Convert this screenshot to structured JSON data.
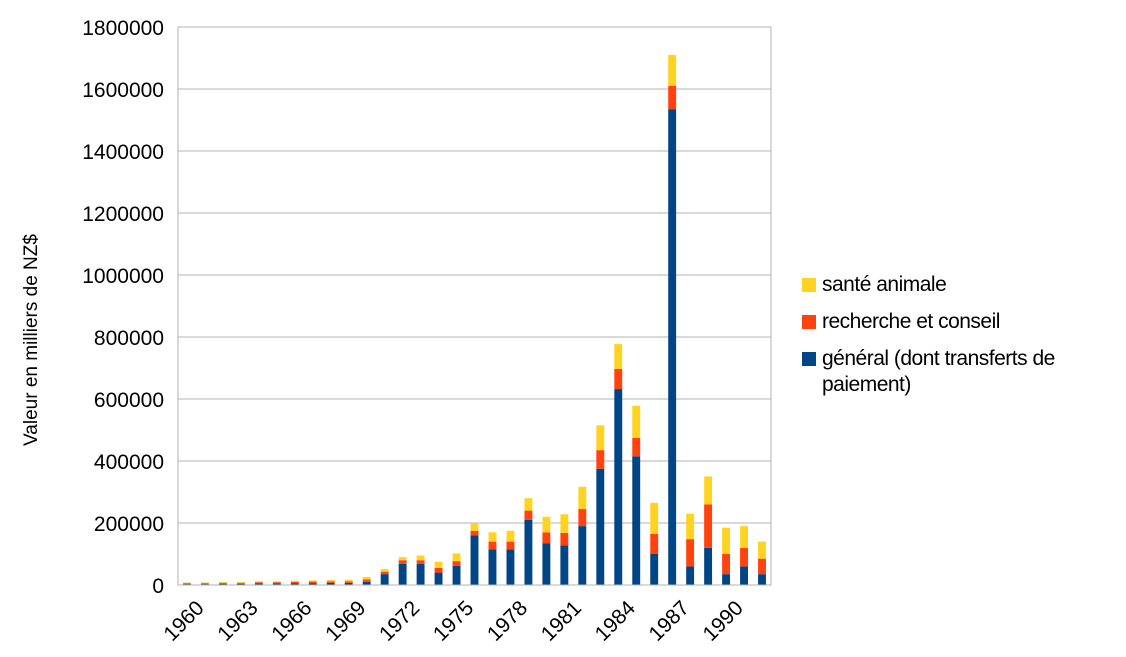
{
  "chart_data": {
    "type": "bar",
    "stacked": true,
    "ylabel": "Valeur en milliers de NZ$",
    "ylim": [
      0,
      1800000
    ],
    "yticks": [
      0,
      200000,
      400000,
      600000,
      800000,
      1000000,
      1200000,
      1400000,
      1600000,
      1800000
    ],
    "xtick_labels": [
      "1960",
      "1963",
      "1966",
      "1969",
      "1972",
      "1975",
      "1978",
      "1981",
      "1984",
      "1987",
      "1990"
    ],
    "categories": [
      "1960",
      "1961",
      "1962",
      "1963",
      "1964",
      "1965",
      "1966",
      "1967",
      "1968",
      "1969",
      "1970",
      "1971",
      "1972",
      "1973",
      "1974",
      "1975",
      "1976",
      "1977",
      "1978",
      "1979",
      "1980",
      "1981",
      "1982",
      "1983",
      "1984",
      "1985",
      "1986",
      "1987",
      "1988",
      "1989",
      "1990",
      "1991",
      "1992"
    ],
    "grid": true,
    "legend_position": "right",
    "series": [
      {
        "name": "général (dont transferts de paiement)",
        "color": "#004586",
        "values": [
          3000,
          3000,
          4000,
          4000,
          5000,
          5000,
          6000,
          6000,
          7000,
          7000,
          10000,
          35000,
          68000,
          68000,
          40000,
          62000,
          160000,
          115000,
          115000,
          210000,
          135000,
          128000,
          190000,
          375000,
          632000,
          415000,
          100000,
          1535000,
          60000,
          120000,
          35000,
          60000,
          35000
        ]
      },
      {
        "name": "recherche et conseil",
        "color": "#ff420e",
        "values": [
          3000,
          3000,
          3000,
          3000,
          4000,
          4000,
          4000,
          5000,
          5000,
          5000,
          8000,
          8000,
          12000,
          12000,
          15000,
          15000,
          15000,
          25000,
          25000,
          30000,
          35000,
          40000,
          55000,
          60000,
          65000,
          60000,
          65000,
          75000,
          88000,
          140000,
          65000,
          60000,
          50000
        ]
      },
      {
        "name": "santé animale",
        "color": "#ffd320",
        "values": [
          2000,
          2000,
          3000,
          3000,
          3000,
          3000,
          4000,
          4000,
          4000,
          5000,
          8000,
          8000,
          10000,
          15000,
          20000,
          25000,
          25000,
          30000,
          35000,
          40000,
          50000,
          60000,
          72000,
          80000,
          80000,
          103000,
          100000,
          100000,
          82000,
          90000,
          85000,
          70000,
          55000
        ]
      }
    ]
  }
}
